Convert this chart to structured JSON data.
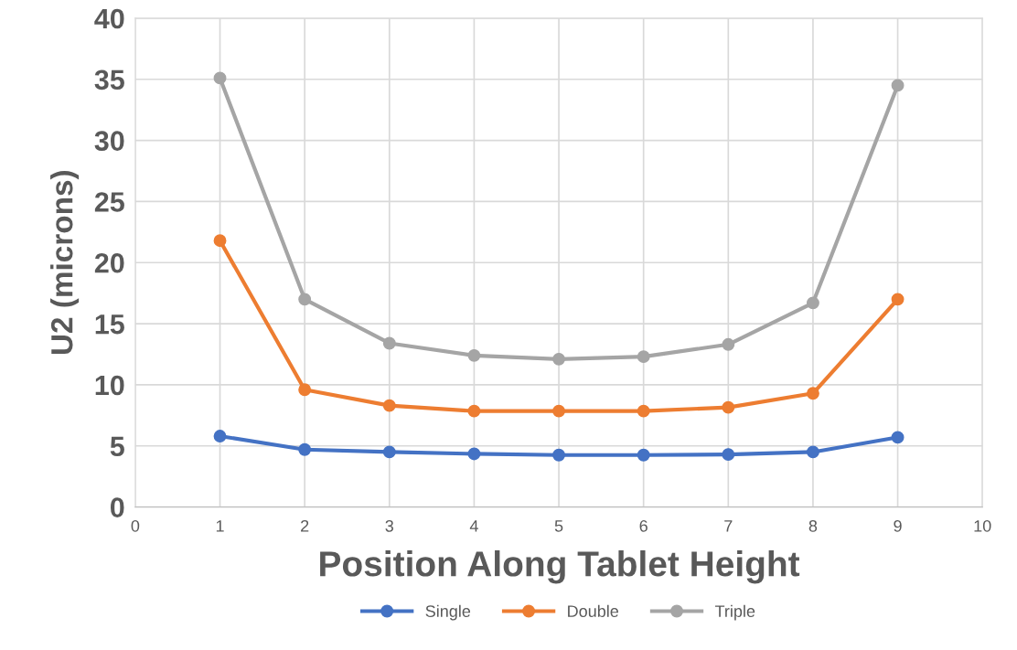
{
  "chart_data": {
    "type": "line",
    "xlabel": "Position Along Tablet Height",
    "ylabel": "U2 (microns)",
    "x": [
      1,
      2,
      3,
      4,
      5,
      6,
      7,
      8,
      9
    ],
    "series": [
      {
        "name": "Single",
        "color": "#4472c4",
        "values": [
          5.8,
          4.7,
          4.5,
          4.35,
          4.25,
          4.25,
          4.3,
          4.5,
          5.7
        ]
      },
      {
        "name": "Double",
        "color": "#ed7d31",
        "values": [
          21.8,
          9.6,
          8.3,
          7.85,
          7.85,
          7.85,
          8.15,
          9.3,
          17.0
        ]
      },
      {
        "name": "Triple",
        "color": "#a5a5a5",
        "values": [
          35.1,
          17.0,
          13.4,
          12.4,
          12.1,
          12.3,
          13.3,
          16.7,
          34.5
        ]
      }
    ],
    "xlim": [
      0,
      10
    ],
    "xticks": [
      0,
      1,
      2,
      3,
      4,
      5,
      6,
      7,
      8,
      9,
      10
    ],
    "ylim": [
      0,
      40
    ],
    "yticks": [
      0,
      5,
      10,
      15,
      20,
      25,
      30,
      35,
      40
    ],
    "grid": true,
    "legend": "bottom",
    "marker": "circle",
    "line_style": "solid"
  }
}
